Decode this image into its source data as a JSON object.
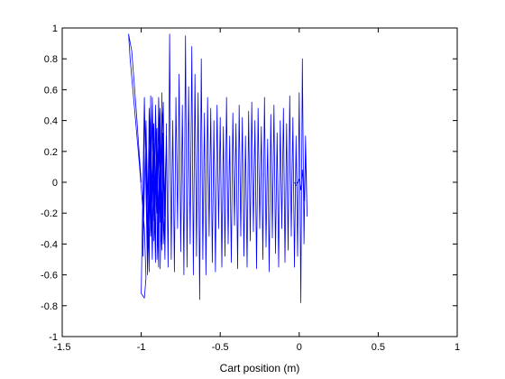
{
  "chart_data": {
    "type": "line",
    "title": "",
    "xlabel": "Cart position (m)",
    "ylabel": "",
    "xlim": [
      -1.5,
      1
    ],
    "ylim": [
      -1,
      1
    ],
    "xticks": [
      -1.5,
      -1,
      -0.5,
      0,
      0.5,
      1
    ],
    "xtick_labels": [
      "-1.5",
      "-1",
      "-0.5",
      "0",
      "0.5",
      "1"
    ],
    "yticks": [
      -1,
      -0.8,
      -0.6,
      -0.4,
      -0.2,
      0,
      0.2,
      0.4,
      0.6,
      0.8,
      1
    ],
    "ytick_labels": [
      "-1",
      "-0.8",
      "-0.6",
      "-0.4",
      "-0.2",
      "0",
      "0.2",
      "0.4",
      "0.6",
      "0.8",
      "1"
    ],
    "grid": false,
    "legend": "none",
    "series": [
      {
        "color": "#0000ff",
        "x": [
          -1.0,
          -1.03,
          -1.06,
          -1.08,
          -1.07,
          -1.04,
          -1.01,
          -0.98,
          -0.97,
          -0.98,
          -1.0,
          -0.98,
          -0.96,
          -0.95,
          -0.96,
          -0.98,
          -0.99,
          -0.97,
          -0.95,
          -0.94,
          -0.95,
          -0.97,
          -0.96,
          -0.94,
          -0.93,
          -0.94,
          -0.96,
          -0.95,
          -0.93,
          -0.92,
          -0.93,
          -0.95,
          -0.94,
          -0.92,
          -0.91,
          -0.92,
          -0.94,
          -0.93,
          -0.91,
          -0.9,
          -0.91,
          -0.93,
          -0.92,
          -0.9,
          -0.89,
          -0.9,
          -0.92,
          -0.91,
          -0.89,
          -0.88,
          -0.89,
          -0.91,
          -0.9,
          -0.88,
          -0.87,
          -0.88,
          -0.9,
          -0.89,
          -0.87,
          -0.86,
          -0.87,
          -0.89,
          -0.88,
          -0.86,
          -0.85,
          -0.86,
          -0.88,
          -0.87,
          -0.85,
          -0.84,
          -0.85,
          -0.87,
          -0.86,
          -0.84,
          -0.83,
          -0.82,
          -0.81,
          -0.8,
          -0.79,
          -0.78,
          -0.77,
          -0.76,
          -0.75,
          -0.74,
          -0.73,
          -0.72,
          -0.71,
          -0.7,
          -0.69,
          -0.68,
          -0.67,
          -0.66,
          -0.65,
          -0.64,
          -0.63,
          -0.62,
          -0.61,
          -0.6,
          -0.59,
          -0.58,
          -0.57,
          -0.56,
          -0.55,
          -0.54,
          -0.53,
          -0.52,
          -0.51,
          -0.5,
          -0.49,
          -0.48,
          -0.47,
          -0.46,
          -0.45,
          -0.44,
          -0.43,
          -0.42,
          -0.41,
          -0.4,
          -0.39,
          -0.38,
          -0.37,
          -0.36,
          -0.35,
          -0.34,
          -0.33,
          -0.32,
          -0.31,
          -0.3,
          -0.29,
          -0.28,
          -0.27,
          -0.26,
          -0.25,
          -0.24,
          -0.23,
          -0.22,
          -0.21,
          -0.2,
          -0.19,
          -0.18,
          -0.17,
          -0.16,
          -0.15,
          -0.14,
          -0.13,
          -0.12,
          -0.11,
          -0.1,
          -0.09,
          -0.08,
          -0.07,
          -0.06,
          -0.05,
          -0.04,
          -0.03,
          -0.02,
          -0.01,
          0.0,
          0.01,
          0.02,
          0.03,
          0.04,
          0.05,
          0.04,
          0.03,
          0.02,
          0.01,
          0.0,
          -0.01,
          -0.02,
          -0.03
        ],
        "y": [
          0.0,
          0.45,
          0.85,
          0.96,
          0.8,
          0.45,
          0.1,
          -0.3,
          -0.62,
          -0.75,
          -0.72,
          0.55,
          -0.55,
          0.48,
          -0.6,
          0.52,
          -0.48,
          0.4,
          -0.58,
          0.56,
          -0.44,
          0.35,
          -0.52,
          0.3,
          -0.38,
          0.5,
          -0.3,
          0.42,
          -0.5,
          0.25,
          -0.4,
          0.48,
          -0.35,
          0.2,
          -0.45,
          0.38,
          -0.28,
          0.55,
          -0.42,
          0.3,
          -0.52,
          0.45,
          -0.25,
          0.35,
          -0.48,
          0.22,
          -0.38,
          0.5,
          -0.3,
          0.42,
          -0.55,
          0.36,
          -0.2,
          0.48,
          -0.4,
          0.28,
          -0.5,
          0.55,
          -0.35,
          0.18,
          -0.44,
          0.4,
          -0.26,
          0.52,
          -0.46,
          0.32,
          -0.56,
          0.45,
          -0.22,
          0.38,
          -0.5,
          0.58,
          -0.4,
          0.3,
          -0.55,
          0.96,
          -0.5,
          0.4,
          -0.58,
          0.55,
          -0.3,
          0.7,
          -0.45,
          0.5,
          -0.6,
          0.95,
          -0.55,
          0.62,
          -0.4,
          0.88,
          -0.6,
          0.7,
          -0.48,
          0.58,
          -0.76,
          0.8,
          -0.5,
          0.45,
          -0.6,
          0.55,
          -0.35,
          0.48,
          -0.52,
          0.4,
          -0.58,
          0.5,
          -0.3,
          0.42,
          -0.55,
          0.36,
          -0.48,
          0.55,
          -0.4,
          0.3,
          -0.52,
          0.45,
          -0.28,
          0.38,
          -0.56,
          0.5,
          -0.35,
          0.42,
          -0.48,
          0.3,
          -0.55,
          0.46,
          -0.38,
          0.52,
          -0.32,
          0.4,
          -0.56,
          0.48,
          -0.3,
          0.36,
          -0.5,
          0.55,
          -0.42,
          0.28,
          -0.58,
          0.44,
          -0.36,
          0.5,
          -0.46,
          0.32,
          -0.55,
          0.4,
          -0.3,
          0.48,
          -0.52,
          0.38,
          -0.44,
          0.56,
          -0.35,
          0.42,
          -0.55,
          0.3,
          -0.48,
          0.58,
          -0.78,
          0.8,
          -0.4,
          0.3,
          -0.22,
          0.18,
          -0.12,
          0.08,
          -0.05,
          0.02,
          0.0,
          -0.02,
          0.0
        ]
      }
    ]
  }
}
